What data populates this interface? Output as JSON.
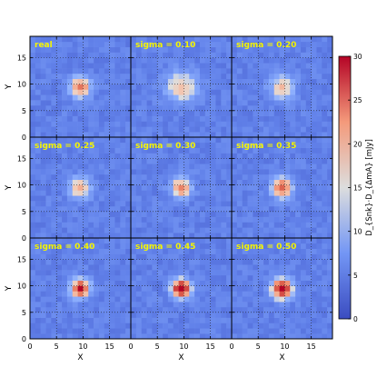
{
  "chart_data": {
    "type": "heatmap",
    "grid": {
      "rows": 3,
      "cols": 3
    },
    "panels": [
      {
        "label": "real",
        "peak": 20,
        "spread": 1.3
      },
      {
        "label": "sigma = 0.10",
        "peak": 13,
        "spread": 2.0
      },
      {
        "label": "sigma = 0.20",
        "peak": 13,
        "spread": 1.6
      },
      {
        "label": "sigma = 0.25",
        "peak": 15,
        "spread": 1.4
      },
      {
        "label": "sigma = 0.30",
        "peak": 18,
        "spread": 1.3
      },
      {
        "label": "sigma = 0.35",
        "peak": 21,
        "spread": 1.3
      },
      {
        "label": "sigma = 0.40",
        "peak": 26,
        "spread": 1.2
      },
      {
        "label": "sigma = 0.45",
        "peak": 29,
        "spread": 1.2
      },
      {
        "label": "sigma = 0.50",
        "peak": 29,
        "spread": 1.3
      }
    ],
    "pixels": 19,
    "background_level": 6,
    "source_center": [
      9.5,
      9.5
    ],
    "xlabel": "X",
    "ylabel": "Y",
    "xlim": [
      0,
      19
    ],
    "ylim": [
      0,
      19
    ],
    "xticks": [
      0,
      5,
      10,
      15
    ],
    "yticks": [
      0,
      5,
      10,
      15
    ],
    "colorbar": {
      "label": "D_{Snk}·D_{ΔmA} [mJy]",
      "range": [
        0,
        30
      ],
      "ticks": [
        0,
        5,
        10,
        15,
        20,
        25,
        30
      ],
      "colormap": "coolwarm"
    },
    "grid_lines": true,
    "label_color": "#f4f400"
  }
}
